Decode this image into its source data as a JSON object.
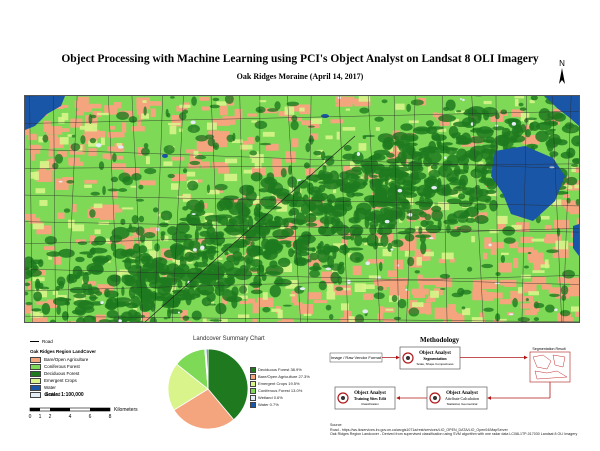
{
  "header": {
    "title": "Object Processing with Machine Learning using PCI's Object Analyst on Landsat 8 OLI Imagery",
    "subtitle": "Oak Ridges Moraine (April 14, 2017)",
    "north_label": "N"
  },
  "colors": {
    "bare": "#f4a57e",
    "coniferous": "#7ed957",
    "deciduous": "#1f7a1f",
    "crops": "#d8f48a",
    "water": "#1a56a8",
    "wetland": "#e4ecf6"
  },
  "legend": {
    "road_label": "Road",
    "group_title": "Oak Ridges Region LandCover",
    "items": [
      {
        "label": "Bare/Open Agriculture",
        "color": "#f4a57e"
      },
      {
        "label": "Coniferous Forest",
        "color": "#7ed957"
      },
      {
        "label": "Deciduous Forest",
        "color": "#1f7a1f"
      },
      {
        "label": "Emergent Crops",
        "color": "#d8f48a"
      },
      {
        "label": "Water",
        "color": "#1a56a8"
      },
      {
        "label": "Wetland",
        "color": "#e4ecf6"
      }
    ]
  },
  "scale": {
    "label": "Scale: 1:100,000",
    "ticks": [
      "0",
      "1",
      "2",
      "4",
      "6",
      "8"
    ],
    "unit": "Kilometers"
  },
  "chart_data": {
    "type": "pie",
    "title": "Landcover Summary Chart",
    "series": [
      {
        "name": "Deciduous Forest 38.9%",
        "value": 38.9,
        "color": "#1f7a1f"
      },
      {
        "name": "Bare/Open Agriculture 27.3%",
        "value": 27.3,
        "color": "#f4a57e"
      },
      {
        "name": "Emergent Crops 19.5%",
        "value": 19.5,
        "color": "#d8f48a"
      },
      {
        "name": "Coniferous Forest 13.0%",
        "value": 13.0,
        "color": "#7ed957"
      },
      {
        "name": "Wetland 0.6%",
        "value": 0.6,
        "color": "#e4ecf6"
      },
      {
        "name": "Water 0.7%",
        "value": 0.7,
        "color": "#1a56a8"
      }
    ]
  },
  "methodology": {
    "title": "Methodology",
    "input_label": "Image / Raw Vendor Format",
    "seg_title": "Object Analyst",
    "seg_sub": "Segmentation",
    "seg_desc": "Scale, Shape Compactness",
    "seg_result": "Segmentation Result",
    "attr_title": "Object Analyst",
    "attr_sub": "Attribute Calculation",
    "attr_desc": "Statistical, Geometrical",
    "train_title": "Object Analyst",
    "train_sub": "Training Sites Edit",
    "train_desc": "Classification"
  },
  "source": {
    "heading": "Source:",
    "line1": "Road - https://ws.lioservices.lrc.gov.on.ca/arcgis1071a/rest/services/LIO_OPEN_DATA/LIO_Open04/MapServer",
    "line2": "Oak Ridges Region Landcover - Derived from supervised classification using SVM algorithm with one radar data LC08L1TP-017030 Landsat 8 OLI Imagery"
  }
}
